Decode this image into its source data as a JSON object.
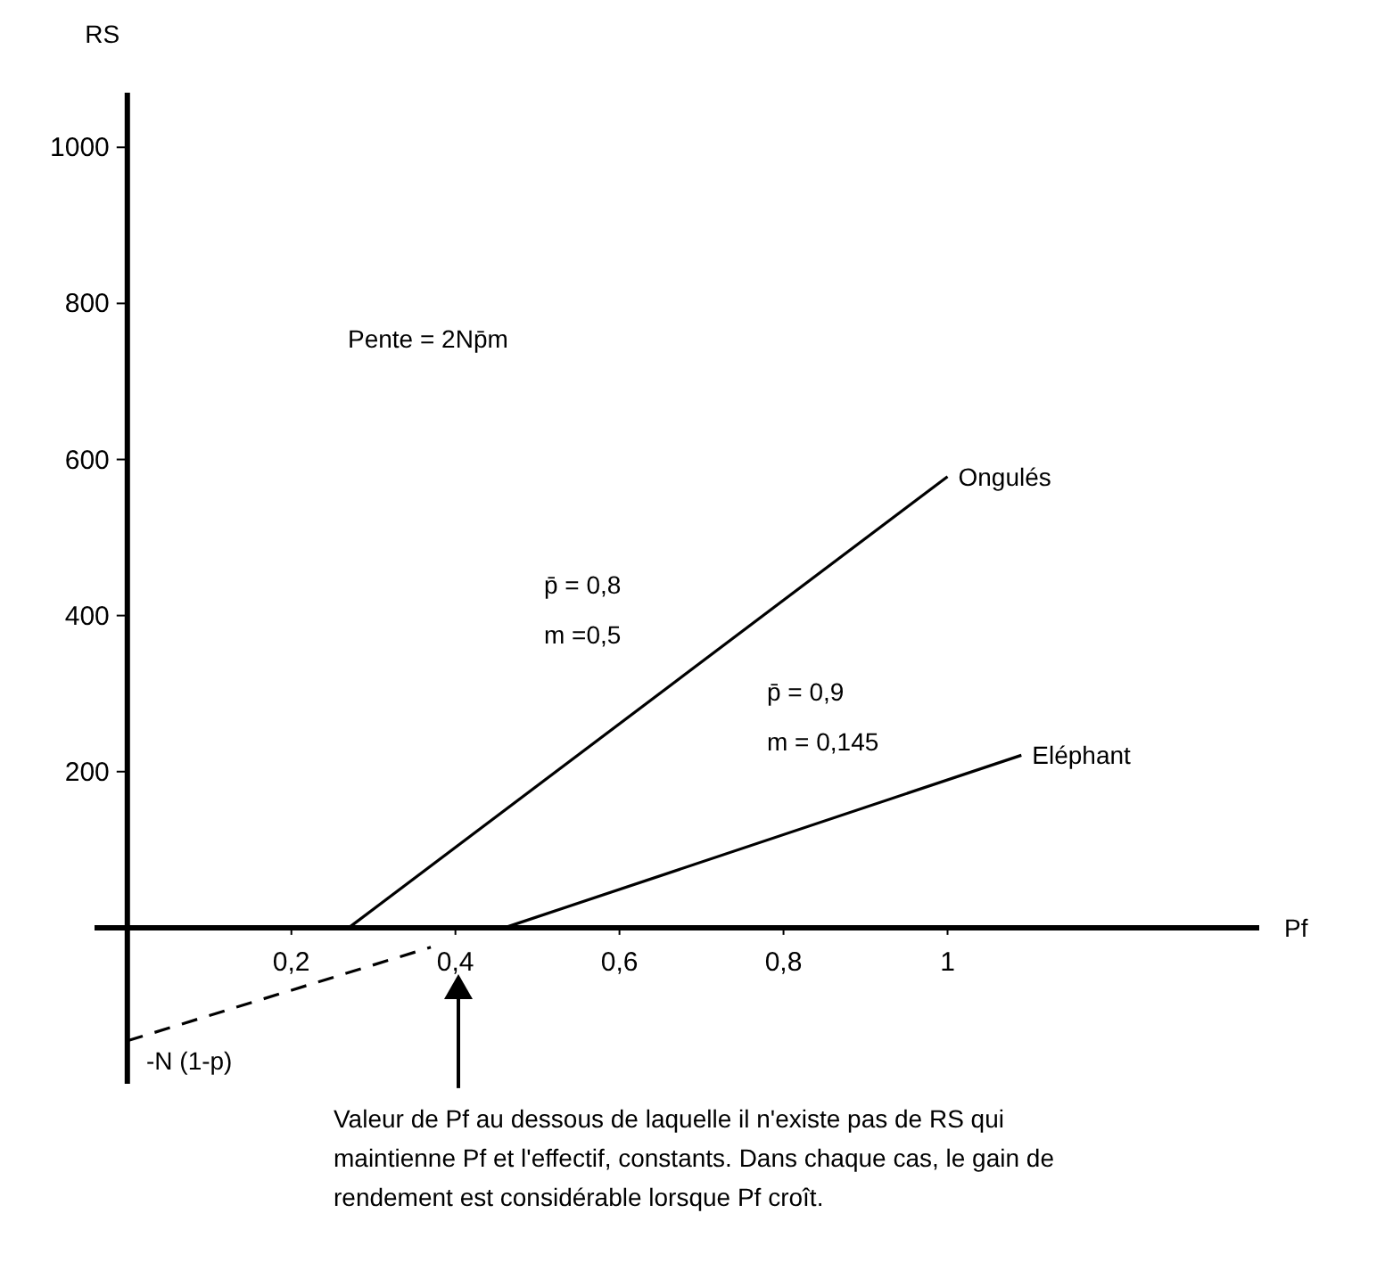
{
  "chart_data": {
    "type": "line",
    "ylabel": "RS",
    "xlabel": "Pf",
    "xlim": [
      -0.04,
      1.38
    ],
    "ylim": [
      -200,
      1070
    ],
    "xticks": [
      {
        "value": 0.2,
        "label": "0,2"
      },
      {
        "value": 0.4,
        "label": "0,4"
      },
      {
        "value": 0.6,
        "label": "0,6"
      },
      {
        "value": 0.8,
        "label": "0,8"
      },
      1
    ],
    "yticks": [
      200,
      400,
      600,
      800,
      1000
    ],
    "grid": false,
    "marker": "none",
    "series": [
      {
        "name": "Ongulés",
        "color": "#000000",
        "x": [
          0.27,
          1.0
        ],
        "values": [
          0,
          578
        ]
      },
      {
        "name": "Eléphant",
        "color": "#000000",
        "x": [
          0.46,
          1.09
        ],
        "values": [
          0,
          221
        ]
      },
      {
        "color": "#000000",
        "x": [
          0,
          0.37
        ],
        "values": [
          -145,
          -25
        ],
        "line_style": "dashed"
      }
    ],
    "annotations": [
      "Pente = 2Np̄m",
      "p̄ = 0,8",
      "m =0,5",
      "p̄ = 0,9",
      "m = 0,145",
      "-N (1-p)",
      "Valeur de Pf au dessous de laquelle il n'existe pas de RS qui maintienne Pf et l'effectif, constants. Dans chaque cas, le gain de rendement est considérable lorsque Pf croît."
    ]
  }
}
